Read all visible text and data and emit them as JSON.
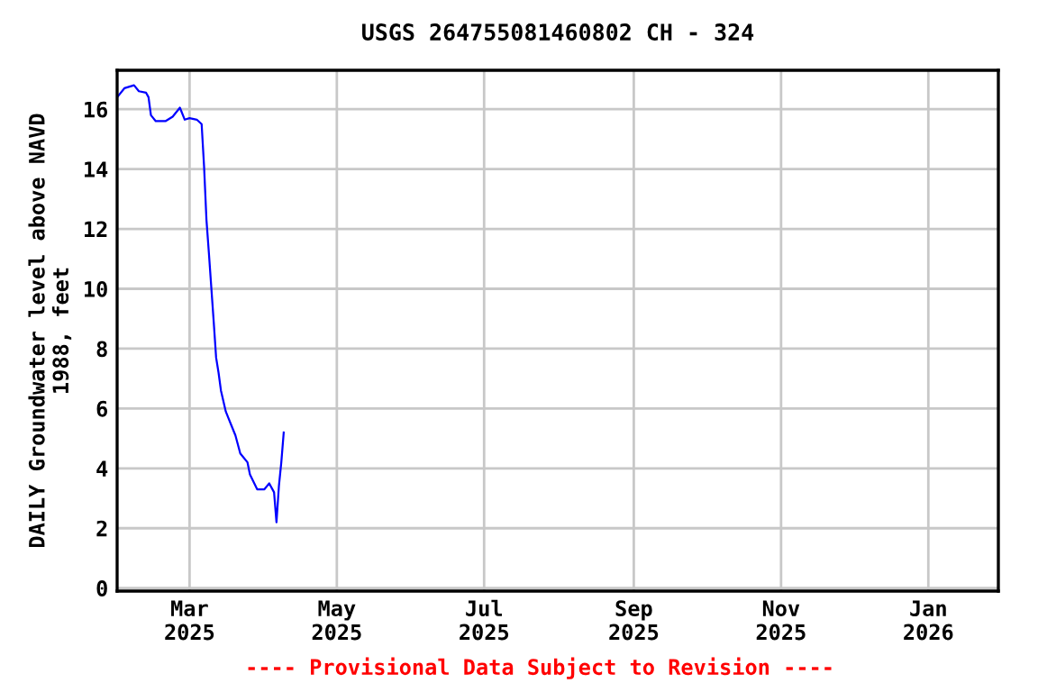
{
  "chart_data": {
    "type": "line",
    "title": "USGS 264755081460802 CH - 324",
    "ylabel": "DAILY Groundwater level above NAVD\n1988, feet",
    "annotations": [
      "---- Provisional Data Subject to Revision ----"
    ],
    "series": [
      {
        "color": "#0000ff",
        "x": [
          "2025-01-30",
          "2025-02-02",
          "2025-02-06",
          "2025-02-08",
          "2025-02-11",
          "2025-02-12",
          "2025-02-13",
          "2025-02-15",
          "2025-02-19",
          "2025-02-22",
          "2025-02-25",
          "2025-02-27",
          "2025-03-01",
          "2025-03-04",
          "2025-03-06",
          "2025-03-07",
          "2025-03-08",
          "2025-03-09",
          "2025-03-10",
          "2025-03-11",
          "2025-03-12",
          "2025-03-13",
          "2025-03-14",
          "2025-03-16",
          "2025-03-18",
          "2025-03-20",
          "2025-03-22",
          "2025-03-25",
          "2025-03-26",
          "2025-03-29",
          "2025-04-01",
          "2025-04-03",
          "2025-04-05",
          "2025-04-06",
          "2025-04-07",
          "2025-04-08",
          "2025-04-09"
        ],
        "values": [
          16.4,
          16.7,
          16.8,
          16.6,
          16.55,
          16.4,
          15.8,
          15.6,
          15.6,
          15.75,
          16.05,
          15.65,
          15.7,
          15.65,
          15.5,
          14.1,
          12.3,
          11.2,
          10.05,
          8.9,
          7.7,
          7.2,
          6.6,
          5.9,
          5.5,
          5.1,
          4.5,
          4.2,
          3.8,
          3.3,
          3.3,
          3.5,
          3.2,
          2.2,
          3.4,
          4.2,
          5.2
        ]
      }
    ],
    "xlim": [
      "2025-01-30",
      "2026-01-30"
    ],
    "xticks": [
      {
        "value": "2025-03-01",
        "label": "Mar\n2025"
      },
      {
        "value": "2025-05-01",
        "label": "May\n2025"
      },
      {
        "value": "2025-07-01",
        "label": "Jul\n2025"
      },
      {
        "value": "2025-09-01",
        "label": "Sep\n2025"
      },
      {
        "value": "2025-11-01",
        "label": "Nov\n2025"
      },
      {
        "value": "2026-01-01",
        "label": "Jan\n2026"
      }
    ],
    "ylim": [
      -0.1,
      17.3
    ],
    "yticks": [
      0,
      2,
      4,
      6,
      8,
      10,
      12,
      14,
      16
    ],
    "grid": true,
    "legend": false
  }
}
